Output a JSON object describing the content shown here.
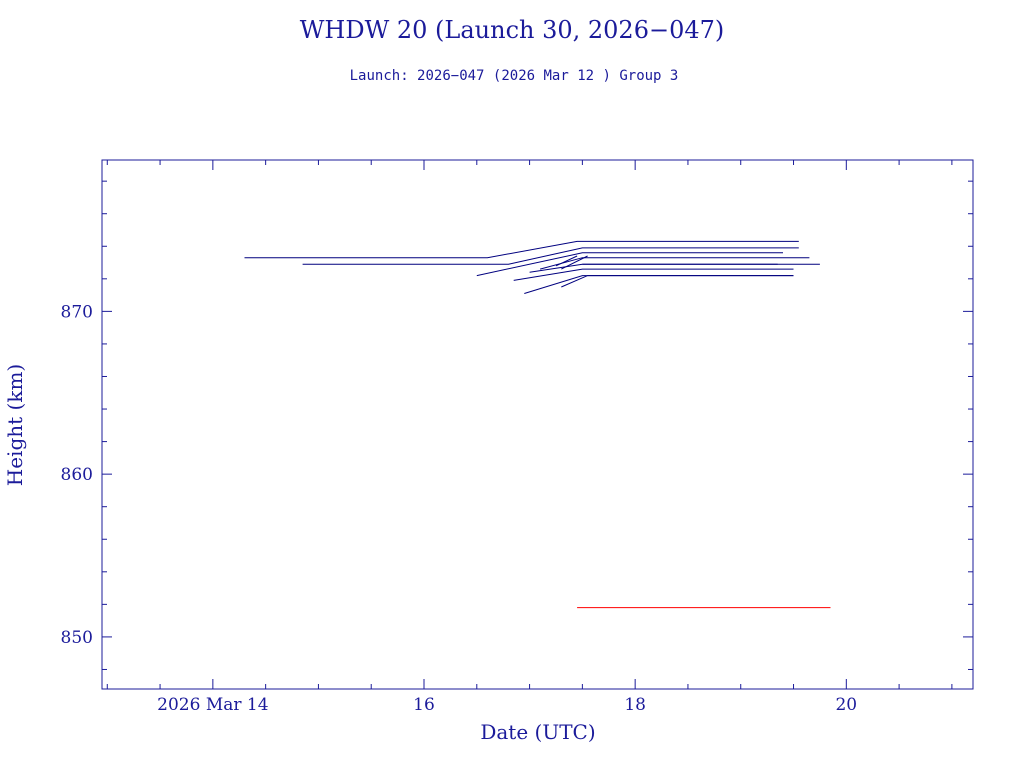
{
  "chart_data": {
    "type": "line",
    "title": "WHDW 20 (Launch 30, 2026−047)",
    "subtitle": "Launch: 2026−047  (2026 Mar 12 )  Group 3",
    "xlabel": "Date (UTC)",
    "ylabel": "Height (km)",
    "xlim": [
      12.95,
      21.2
    ],
    "ylim": [
      846.8,
      879.3
    ],
    "x_ticks": [
      {
        "value": 14,
        "label": "2026 Mar 14"
      },
      {
        "value": 16,
        "label": "16"
      },
      {
        "value": 18,
        "label": "18"
      },
      {
        "value": 20,
        "label": "20"
      }
    ],
    "y_ticks": [
      {
        "value": 850,
        "label": "850"
      },
      {
        "value": 860,
        "label": "860"
      },
      {
        "value": 870,
        "label": "870"
      }
    ],
    "colors": {
      "axis": "#1b1b9a",
      "series": "#00007f",
      "highlight": "#ff0000"
    },
    "series": [
      {
        "color": "#00007f",
        "x": [
          14.3,
          16.6,
          17.45,
          19.55
        ],
        "y": [
          873.3,
          873.3,
          874.3,
          874.3
        ]
      },
      {
        "color": "#00007f",
        "x": [
          14.85,
          16.8,
          17.5,
          19.55
        ],
        "y": [
          872.9,
          872.9,
          873.9,
          873.9
        ]
      },
      {
        "color": "#00007f",
        "x": [
          16.5,
          17.5,
          19.4
        ],
        "y": [
          872.2,
          873.6,
          873.6
        ]
      },
      {
        "color": "#00007f",
        "x": [
          17.1,
          17.5,
          19.65
        ],
        "y": [
          872.6,
          873.3,
          873.3
        ]
      },
      {
        "color": "#00007f",
        "x": [
          17.5,
          19.75
        ],
        "y": [
          872.9,
          872.9
        ]
      },
      {
        "color": "#00007f",
        "x": [
          17.0,
          17.5,
          19.35
        ],
        "y": [
          872.4,
          872.9,
          872.9
        ]
      },
      {
        "color": "#00007f",
        "x": [
          16.85,
          17.5,
          19.5
        ],
        "y": [
          871.9,
          872.6,
          872.6
        ]
      },
      {
        "color": "#00007f",
        "x": [
          17.3,
          17.55,
          19.5
        ],
        "y": [
          871.5,
          872.2,
          872.2
        ]
      },
      {
        "color": "#00007f",
        "x": [
          16.95,
          17.5,
          19.5
        ],
        "y": [
          871.1,
          872.2,
          872.2
        ]
      },
      {
        "color": "#00007f",
        "x": [
          17.3,
          17.55
        ],
        "y": [
          872.6,
          873.4
        ]
      },
      {
        "color": "#00007f",
        "x": [
          17.25,
          17.45
        ],
        "y": [
          872.8,
          873.4
        ]
      },
      {
        "color": "#ff0000",
        "x": [
          17.45,
          19.85
        ],
        "y": [
          851.8,
          851.8
        ]
      }
    ]
  }
}
